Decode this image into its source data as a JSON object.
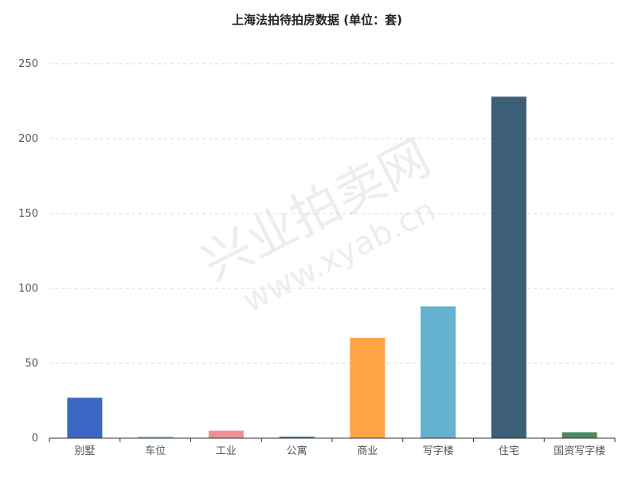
{
  "chart_data": {
    "type": "bar",
    "title": "上海法拍待拍房数据 (单位：套)",
    "categories": [
      "别墅",
      "车位",
      "工业",
      "公寓",
      "商业",
      "写字楼",
      "住宅",
      "国资写字楼"
    ],
    "values": [
      27,
      1,
      5,
      1,
      67,
      88,
      228,
      4
    ],
    "colors": [
      "#3a68c4",
      "#7ec9a9",
      "#ef8f97",
      "#2e7ea3",
      "#ffa347",
      "#64b2d0",
      "#3c5e76",
      "#4a8a5f"
    ],
    "ylim": [
      0,
      250
    ],
    "yticks": [
      0,
      50,
      100,
      150,
      200,
      250
    ],
    "grid": true,
    "legend": "none",
    "xlabel": "",
    "ylabel": ""
  },
  "watermark": {
    "line1": "兴业拍卖网",
    "line2": "www.xyab.cn"
  }
}
